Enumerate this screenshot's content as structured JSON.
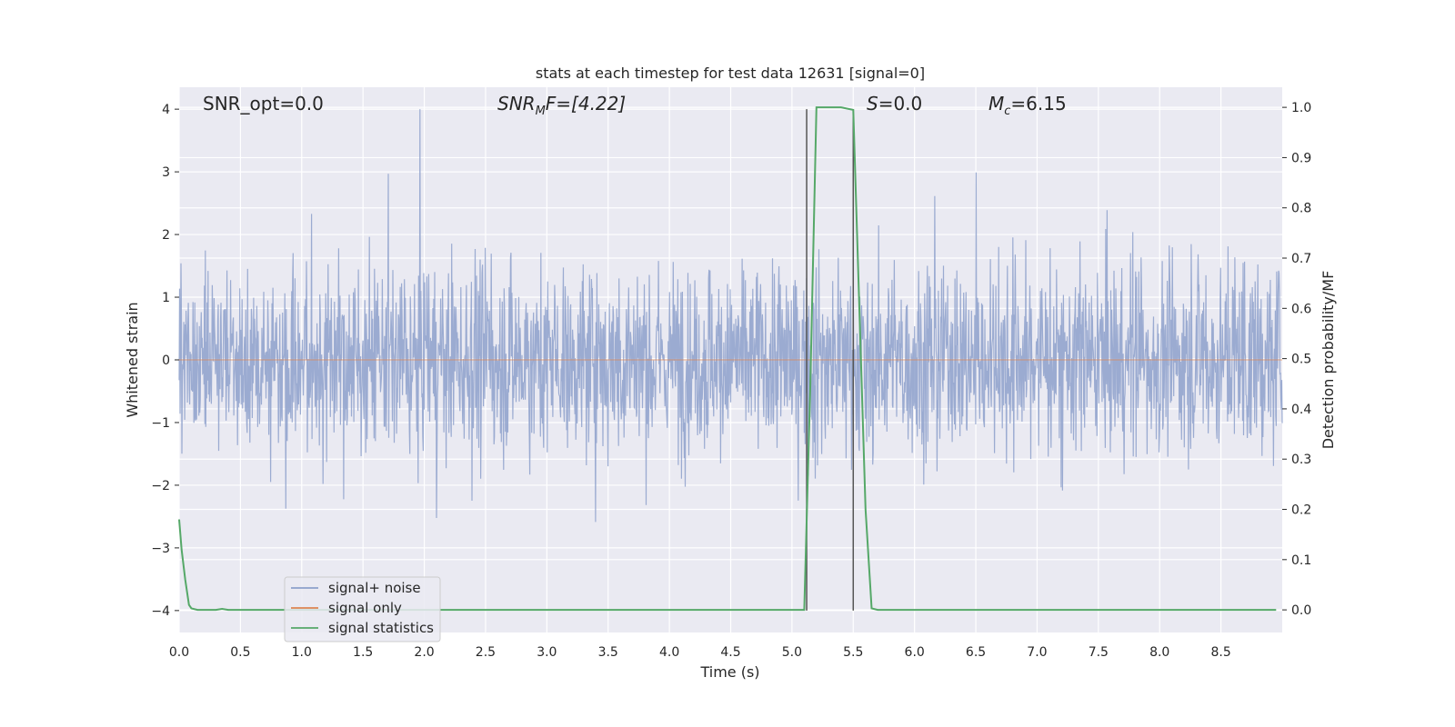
{
  "chart_data": {
    "type": "line",
    "title": "stats at each timestep for test data 12631 [signal=0]",
    "xlabel": "Time (s)",
    "ylabel": "Whitened strain",
    "y2label": "Detection probability/MF",
    "xlim": [
      0,
      9
    ],
    "ylim": [
      -4.35,
      4.35
    ],
    "y2lim": [
      -0.045,
      1.04
    ],
    "x_ticks": [
      "0.0",
      "0.5",
      "1.0",
      "1.5",
      "2.0",
      "2.5",
      "3.0",
      "3.5",
      "4.0",
      "4.5",
      "5.0",
      "5.5",
      "6.0",
      "6.5",
      "7.0",
      "7.5",
      "8.0",
      "8.5"
    ],
    "y_ticks": [
      "4",
      "3",
      "2",
      "1",
      "0",
      "−1",
      "−2",
      "−3",
      "−4"
    ],
    "y2_ticks": [
      "1.0",
      "0.9",
      "0.8",
      "0.7",
      "0.6",
      "0.5",
      "0.4",
      "0.3",
      "0.2",
      "0.1",
      "0.0"
    ],
    "grid": true,
    "legend_position": "lower-left",
    "annotations": {
      "snr_opt": "SNR_opt=0.0",
      "snr_mf_main": "SNR",
      "snr_mf_sub": "M",
      "snr_mf_rest": "F=[4.22]",
      "s_main": "S",
      "s_rest": "=0.0",
      "mc_main": "M",
      "mc_sub": "c",
      "mc_rest": "=6.15"
    },
    "vertical_lines_x": [
      5.12,
      5.5
    ],
    "series": [
      {
        "name": "signal+ noise",
        "color": "#8da0cb",
        "note_noise": "dense whitened noise band, roughly ±1.6 typical, peaks to about ±3.5"
      },
      {
        "name": "signal only",
        "color": "#dd8452",
        "x": [
          0,
          9
        ],
        "y": [
          0,
          0
        ]
      },
      {
        "name": "signal statistics",
        "color": "#55a868",
        "axis": "right",
        "x": [
          0.0,
          0.02,
          0.05,
          0.08,
          0.1,
          0.15,
          0.2,
          0.3,
          0.35,
          0.4,
          0.5,
          1.0,
          2.0,
          3.0,
          4.0,
          4.9,
          5.05,
          5.1,
          5.15,
          5.2,
          5.3,
          5.4,
          5.5,
          5.55,
          5.6,
          5.65,
          5.7,
          6.0,
          7.0,
          8.0,
          8.95
        ],
        "y": [
          0.18,
          0.12,
          0.06,
          0.01,
          0.003,
          0.0,
          0.0,
          0.0,
          0.002,
          0.0,
          0.0,
          0.0,
          0.0,
          0.0,
          0.0,
          0.0,
          0.0,
          0.0,
          0.45,
          1.0,
          1.0,
          1.0,
          0.995,
          0.6,
          0.2,
          0.003,
          0.0,
          0.0,
          0.0,
          0.0,
          0.0
        ]
      }
    ]
  }
}
